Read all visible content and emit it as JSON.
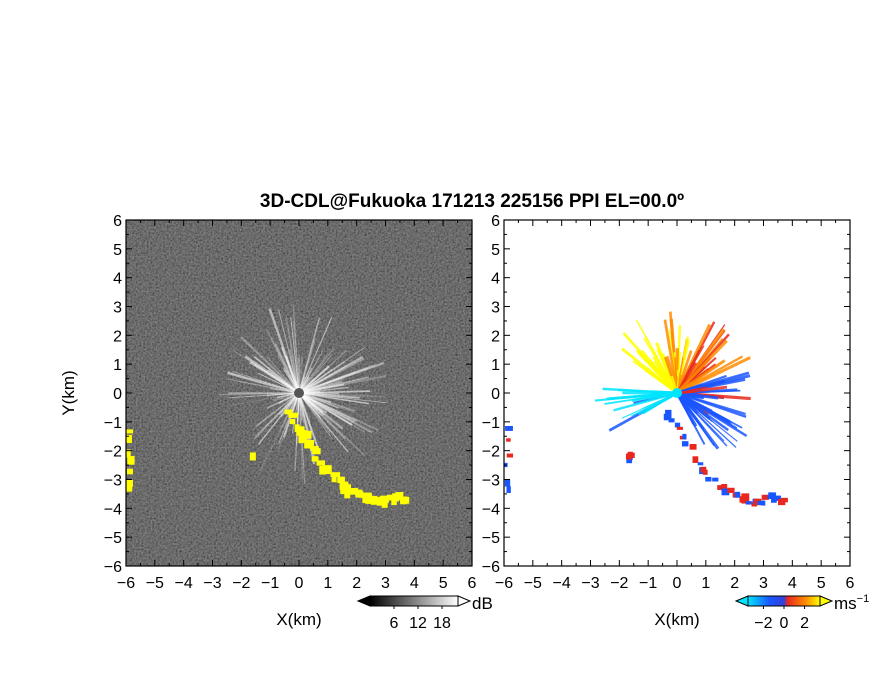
{
  "chart_data": [
    {
      "type": "heatmap",
      "title": "3D-CDL@Fukuoka 171213 225156 PPI EL=00.0º",
      "panel": "left",
      "quantity": "SNR",
      "xlabel": "X(km)",
      "ylabel": "Y(km)",
      "xlim": [
        -6,
        6
      ],
      "ylim": [
        -6,
        6
      ],
      "xticks": [
        "−6",
        "−5",
        "−4",
        "−3",
        "−2",
        "−1",
        "0",
        "1",
        "2",
        "3",
        "4",
        "5",
        "6"
      ],
      "yticks": [
        "−6",
        "−5",
        "−4",
        "−3",
        "−2",
        "−1",
        "0",
        "1",
        "2",
        "3",
        "4",
        "5",
        "6"
      ],
      "colorbar": {
        "unit": "dB",
        "ticks": [
          "6",
          "12",
          "18"
        ],
        "tick_values": [
          6,
          12,
          18
        ],
        "range": [
          0,
          22
        ],
        "colors": [
          "#000000",
          "#ffffff"
        ]
      },
      "overlay_color": "#ffff00",
      "overlay_regions": [
        {
          "name": "hard-target-south-east",
          "points": [
            [
              -0.4,
              -0.7
            ],
            [
              0.2,
              -1.5
            ],
            [
              0.9,
              -2.6
            ],
            [
              1.6,
              -3.3
            ],
            [
              2.2,
              -3.6
            ],
            [
              2.8,
              -3.8
            ],
            [
              3.3,
              -3.6
            ],
            [
              3.7,
              -3.7
            ]
          ]
        },
        {
          "name": "hard-target-west",
          "points": [
            [
              -5.9,
              -1.3
            ],
            [
              -5.9,
              -3.4
            ]
          ]
        },
        {
          "name": "hard-target-small",
          "points": [
            [
              -1.6,
              -2.2
            ]
          ]
        }
      ]
    },
    {
      "type": "heatmap",
      "panel": "right",
      "quantity": "Doppler velocity",
      "xlabel": "X(km)",
      "xlim": [
        -6,
        6
      ],
      "ylim": [
        -6,
        6
      ],
      "xticks": [
        "−6",
        "−5",
        "−4",
        "−3",
        "−2",
        "−1",
        "0",
        "1",
        "2",
        "3",
        "4",
        "5",
        "6"
      ],
      "yticks": [
        "−6",
        "−5",
        "−4",
        "−3",
        "−2",
        "−1",
        "0",
        "1",
        "2",
        "3",
        "4",
        "5",
        "6"
      ],
      "colorbar": {
        "unit": "ms",
        "unit_exp": "−1",
        "ticks": [
          "−2",
          "0",
          "2"
        ],
        "tick_values": [
          -2,
          0,
          2
        ],
        "range": [
          -3.5,
          3.5
        ],
        "colors": [
          "#00e5ff",
          "#1a56ff",
          "#e8281e",
          "#ff8c00",
          "#ffff00"
        ]
      },
      "velocity_sectors": [
        {
          "direction_deg_from_x": 125,
          "velocity": 3.0
        },
        {
          "direction_deg_from_x": 90,
          "velocity": 2.0
        },
        {
          "direction_deg_from_x": 45,
          "velocity": 0.5
        },
        {
          "direction_deg_from_x": 0,
          "velocity": -1.0
        },
        {
          "direction_deg_from_x": -45,
          "velocity": -1.2
        },
        {
          "direction_deg_from_x": 195,
          "velocity": -2.5
        }
      ]
    }
  ]
}
